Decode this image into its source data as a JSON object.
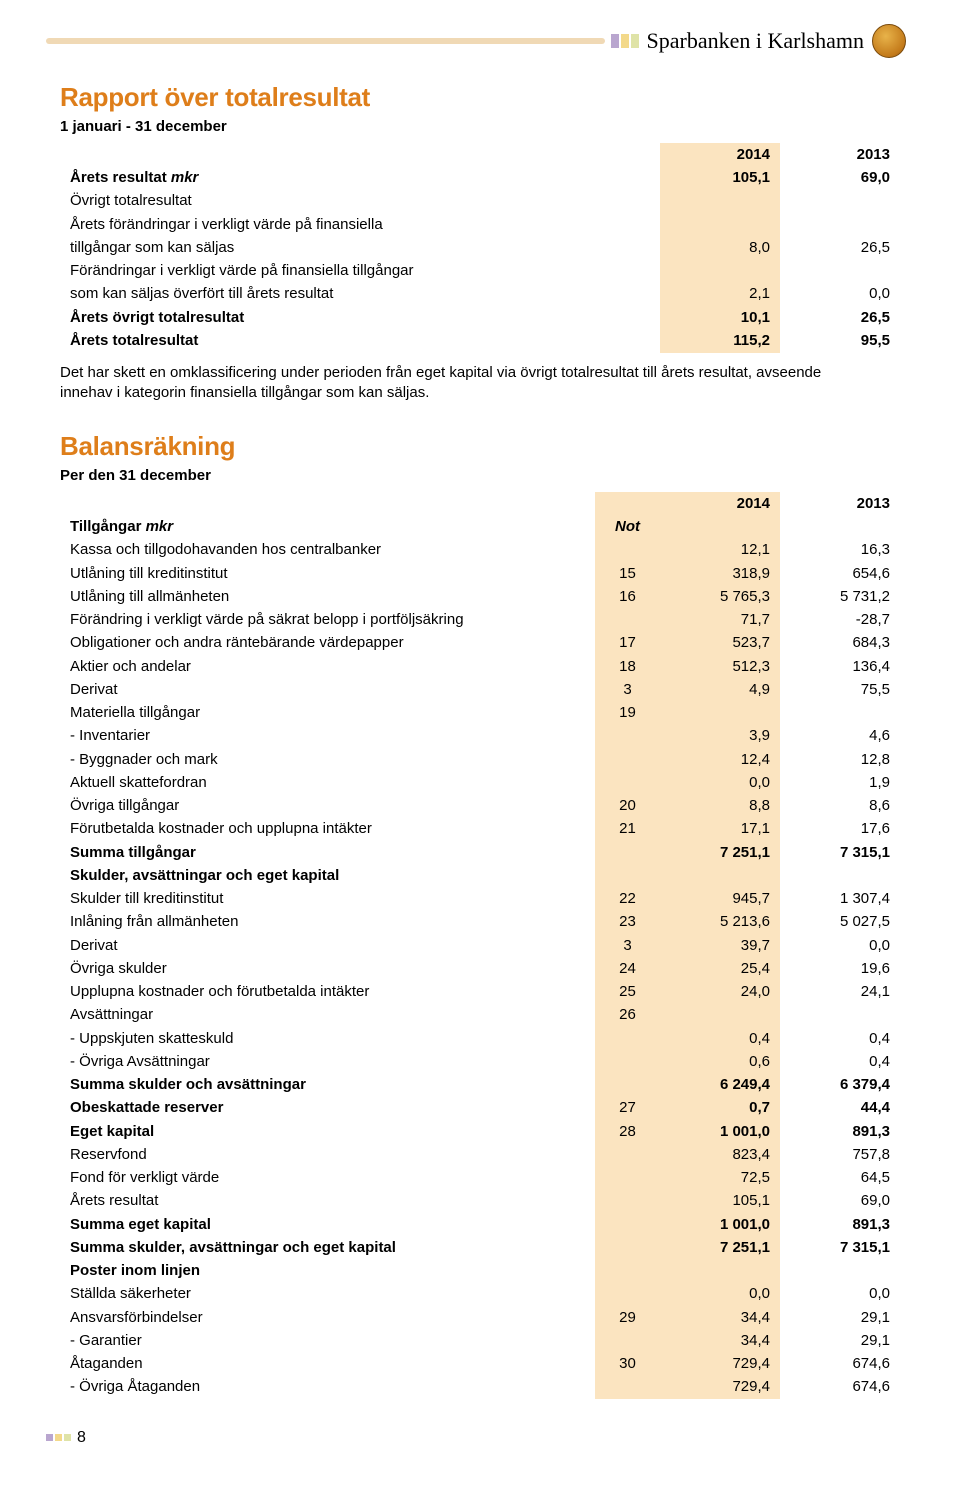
{
  "header": {
    "bank_name": "Sparbanken i Karlshamn",
    "stripe_color": "#f0d9b5",
    "square_colors": [
      "#b9a6cf",
      "#f3d98a",
      "#dfe3a7"
    ]
  },
  "colors": {
    "title_orange": "#de7e1a",
    "highlight_col": "#fbe4c0"
  },
  "section1": {
    "title": "Rapport över totalresultat",
    "subtitle": "1 januari - 31 december",
    "col_2014": "2014",
    "col_2013": "2013",
    "rows": [
      {
        "label": "Årets resultat mkr",
        "bold": true,
        "ital_suffix": "mkr",
        "v14": "105,1",
        "v13": "69,0"
      },
      {
        "label": "Övrigt totalresultat",
        "v14": "",
        "v13": ""
      },
      {
        "label": "Årets förändringar i verkligt värde på finansiella",
        "v14": "",
        "v13": ""
      },
      {
        "label": "tillgångar som kan säljas",
        "v14": "8,0",
        "v13": "26,5"
      },
      {
        "label": "Förändringar i verkligt värde på finansiella tillgångar",
        "v14": "",
        "v13": ""
      },
      {
        "label": "som kan säljas överfört till årets resultat",
        "v14": "2,1",
        "v13": "0,0"
      },
      {
        "label": "Årets övrigt totalresultat",
        "bold": true,
        "v14": "10,1",
        "v13": "26,5"
      },
      {
        "label": "Årets totalresultat",
        "bold": true,
        "v14": "115,2",
        "v13": "95,5"
      }
    ],
    "note": "Det har skett en omklassificering under perioden från eget kapital via övrigt totalresultat till årets resultat, avseende innehav i kategorin finansiella tillgångar som kan säljas."
  },
  "section2": {
    "title": "Balansräkning",
    "subtitle": "Per den 31 december",
    "col_2014": "2014",
    "col_2013": "2013",
    "assets_header": "Tillgångar mkr",
    "note_header": "Not",
    "rows": [
      {
        "label": "Kassa och tillgodohavanden hos centralbanker",
        "note": "",
        "v14": "12,1",
        "v13": "16,3"
      },
      {
        "label": "Utlåning till kreditinstitut",
        "note": "15",
        "v14": "318,9",
        "v13": "654,6"
      },
      {
        "label": "Utlåning till allmänheten",
        "note": "16",
        "v14": "5 765,3",
        "v13": "5 731,2"
      },
      {
        "label": "Förändring i verkligt värde på säkrat belopp i portföljsäkring",
        "note": "",
        "v14": "71,7",
        "v13": "-28,7"
      },
      {
        "label": "Obligationer och andra räntebärande värdepapper",
        "note": "17",
        "v14": "523,7",
        "v13": "684,3"
      },
      {
        "label": "Aktier och andelar",
        "note": "18",
        "v14": "512,3",
        "v13": "136,4"
      },
      {
        "label": "Derivat",
        "note": "3",
        "v14": "4,9",
        "v13": "75,5"
      },
      {
        "label": "Materiella tillgångar",
        "note": "19",
        "v14": "",
        "v13": ""
      },
      {
        "label": "- Inventarier",
        "indent": 1,
        "note": "",
        "v14": "3,9",
        "v13": "4,6"
      },
      {
        "label": "- Byggnader och mark",
        "indent": 1,
        "note": "",
        "v14": "12,4",
        "v13": "12,8"
      },
      {
        "label": "Aktuell skattefordran",
        "note": "",
        "v14": "0,0",
        "v13": "1,9"
      },
      {
        "label": "Övriga tillgångar",
        "note": "20",
        "v14": "8,8",
        "v13": "8,6"
      },
      {
        "label": "Förutbetalda kostnader och upplupna intäkter",
        "note": "21",
        "v14": "17,1",
        "v13": "17,6"
      },
      {
        "label": "Summa tillgångar",
        "bold": true,
        "note": "",
        "v14": "7 251,1",
        "v13": "7 315,1"
      },
      {
        "label": "Skulder, avsättningar och eget kapital",
        "bold": true,
        "note": "",
        "v14": "",
        "v13": ""
      },
      {
        "label": "Skulder till kreditinstitut",
        "note": "22",
        "v14": "945,7",
        "v13": "1 307,4"
      },
      {
        "label": "Inlåning från allmänheten",
        "note": "23",
        "v14": "5 213,6",
        "v13": "5 027,5"
      },
      {
        "label": "Derivat",
        "note": "3",
        "v14": "39,7",
        "v13": "0,0"
      },
      {
        "label": "Övriga skulder",
        "note": "24",
        "v14": "25,4",
        "v13": "19,6"
      },
      {
        "label": "Upplupna kostnader och förutbetalda intäkter",
        "note": "25",
        "v14": "24,0",
        "v13": "24,1"
      },
      {
        "label": "Avsättningar",
        "note": "26",
        "v14": "",
        "v13": ""
      },
      {
        "label": "- Uppskjuten skatteskuld",
        "indent": 1,
        "note": "",
        "v14": "0,4",
        "v13": "0,4"
      },
      {
        "label": "- Övriga Avsättningar",
        "indent": 1,
        "note": "",
        "v14": "0,6",
        "v13": "0,4"
      },
      {
        "label": "Summa skulder och avsättningar",
        "bold": true,
        "note": "",
        "v14": "6 249,4",
        "v13": "6 379,4"
      },
      {
        "label": "Obeskattade reserver",
        "bold": true,
        "note": "27",
        "v14": "0,7",
        "v13": "44,4"
      },
      {
        "label": "Eget kapital",
        "bold": true,
        "note": "28",
        "v14": "1 001,0",
        "v13": "891,3"
      },
      {
        "label": "Reservfond",
        "indent": 2,
        "note": "",
        "v14": "823,4",
        "v13": "757,8"
      },
      {
        "label": "Fond för verkligt värde",
        "indent": 2,
        "note": "",
        "v14": "72,5",
        "v13": "64,5"
      },
      {
        "label": "Årets resultat",
        "indent": 2,
        "note": "",
        "v14": "105,1",
        "v13": "69,0"
      },
      {
        "label": "Summa eget kapital",
        "bold": true,
        "note": "",
        "v14": "1 001,0",
        "v13": "891,3"
      },
      {
        "label": "Summa skulder, avsättningar och eget kapital",
        "bold": true,
        "note": "",
        "v14": "7 251,1",
        "v13": "7 315,1"
      },
      {
        "label": "Poster inom linjen",
        "bold": true,
        "note": "",
        "v14": "",
        "v13": ""
      },
      {
        "label": "Ställda säkerheter",
        "note": "",
        "v14": "0,0",
        "v13": "0,0"
      },
      {
        "label": "Ansvarsförbindelser",
        "note": "29",
        "v14": "34,4",
        "v13": "29,1"
      },
      {
        "label": "- Garantier",
        "indent": 1,
        "note": "",
        "v14": "34,4",
        "v13": "29,1"
      },
      {
        "label": "Åtaganden",
        "note": "30",
        "v14": "729,4",
        "v13": "674,6"
      },
      {
        "label": "- Övriga Åtaganden",
        "indent": 1,
        "note": "",
        "v14": "729,4",
        "v13": "674,6"
      }
    ]
  },
  "page_number": "8"
}
